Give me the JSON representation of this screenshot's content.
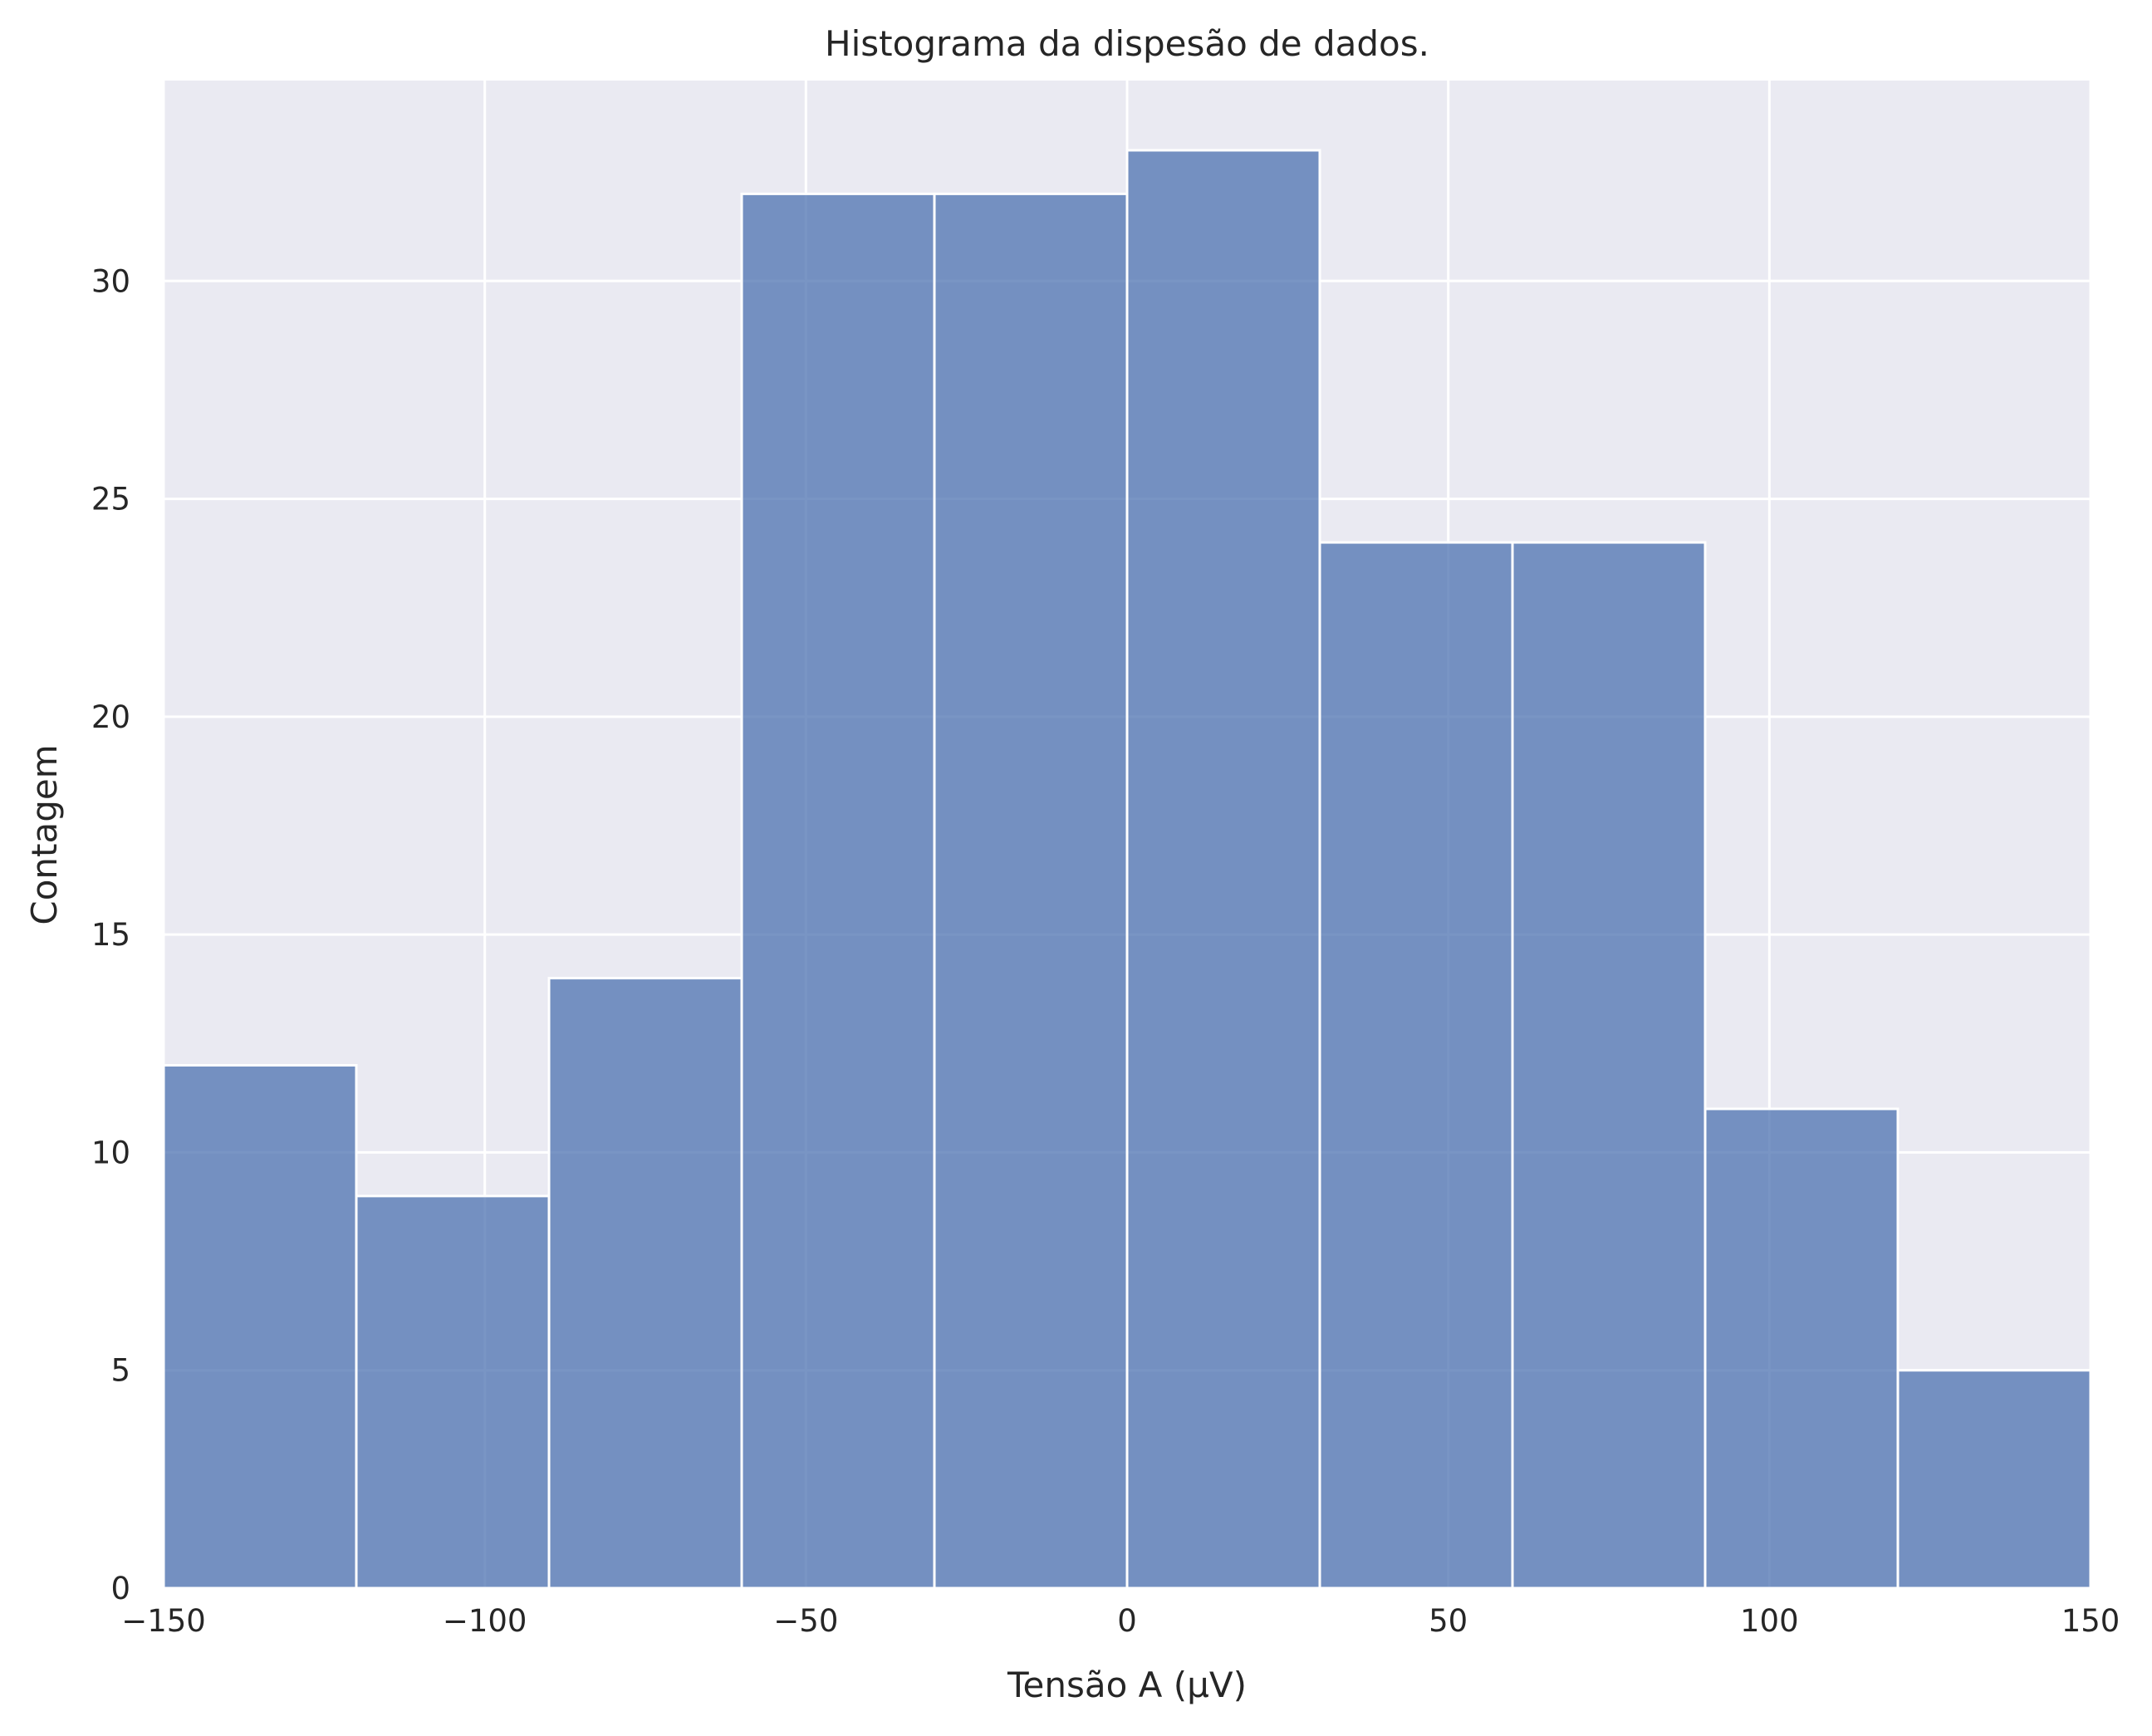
{
  "chart_data": {
    "type": "bar",
    "title": "Histograma da dispesão de dados.",
    "xlabel": "Tensão A (μV)",
    "ylabel": "Contagem",
    "xlim": [
      -150,
      150
    ],
    "ylim": [
      0,
      34.6
    ],
    "grid": true,
    "bins": [
      {
        "start": -150,
        "end": -120,
        "count": 12
      },
      {
        "start": -120,
        "end": -90,
        "count": 9
      },
      {
        "start": -90,
        "end": -60,
        "count": 14
      },
      {
        "start": -60,
        "end": -30,
        "count": 32
      },
      {
        "start": -30,
        "end": 0,
        "count": 32
      },
      {
        "start": 0,
        "end": 30,
        "count": 33
      },
      {
        "start": 30,
        "end": 60,
        "count": 24
      },
      {
        "start": 60,
        "end": 90,
        "count": 24
      },
      {
        "start": 90,
        "end": 120,
        "count": 11
      },
      {
        "start": 120,
        "end": 150,
        "count": 5
      }
    ],
    "xticks": [
      {
        "value": -150,
        "label": "−150"
      },
      {
        "value": -100,
        "label": "−100"
      },
      {
        "value": -50,
        "label": "−50"
      },
      {
        "value": 0,
        "label": "0"
      },
      {
        "value": 50,
        "label": "50"
      },
      {
        "value": 100,
        "label": "100"
      },
      {
        "value": 150,
        "label": "150"
      }
    ],
    "yticks": [
      {
        "value": 0,
        "label": "0"
      },
      {
        "value": 5,
        "label": "5"
      },
      {
        "value": 10,
        "label": "10"
      },
      {
        "value": 15,
        "label": "15"
      },
      {
        "value": 20,
        "label": "20"
      },
      {
        "value": 25,
        "label": "25"
      },
      {
        "value": 30,
        "label": "30"
      }
    ],
    "colors": {
      "bar": "#4c72b0",
      "background": "#eaeaf2",
      "grid": "#ffffff",
      "text": "#262626"
    }
  }
}
